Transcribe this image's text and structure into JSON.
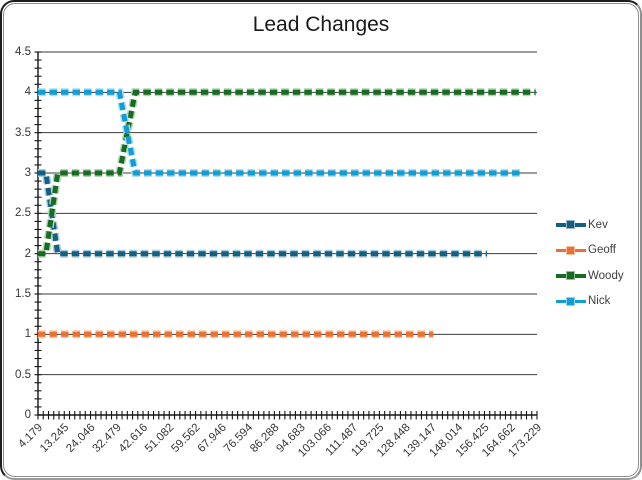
{
  "chart_data": {
    "type": "line",
    "title": "Lead Changes",
    "xlabel": "",
    "ylabel": "",
    "ylim": [
      0,
      4.5
    ],
    "y_tick_step": 0.5,
    "y_tick_labels": [
      "0",
      "0.5",
      "1",
      "1.5",
      "2",
      "2.5",
      "3",
      "3.5",
      "4",
      "4.5"
    ],
    "x_labels": [
      "4.179",
      "13.245",
      "24.046",
      "32.479",
      "42.616",
      "51.082",
      "59.562",
      "67.946",
      "76.594",
      "86.288",
      "94.683",
      "103.066",
      "111.487",
      "119.725",
      "128.448",
      "139.147",
      "148.014",
      "156.425",
      "164.662",
      "173.229"
    ],
    "grid": "horizontal",
    "gridline_color": "#3b3b3b",
    "axis_color": "#161616",
    "tick_label_color": "#363636",
    "legend_position": "right",
    "line_style": "dashed",
    "series": [
      {
        "name": "Kev",
        "color": "#156082",
        "halo_color": "#a8ccdc",
        "values": [
          3,
          2,
          2,
          2,
          2,
          2,
          2,
          2,
          2,
          2,
          2,
          2,
          2,
          2,
          2,
          2,
          2,
          2,
          null,
          null
        ],
        "vertices": [
          [
            0,
            3
          ],
          [
            0.3,
            3
          ],
          [
            0.75,
            2
          ],
          [
            17.1,
            2
          ]
        ]
      },
      {
        "name": "Geoff",
        "color": "#E97132",
        "halo_color": "#f6c9a8",
        "values": [
          1,
          1,
          1,
          1,
          1,
          1,
          1,
          1,
          1,
          1,
          1,
          1,
          1,
          1,
          1,
          1,
          null,
          null,
          null,
          null
        ],
        "vertices": [
          [
            0,
            1
          ],
          [
            15.05,
            1
          ]
        ]
      },
      {
        "name": "Woody",
        "color": "#196B24",
        "halo_color": "#aed5b0",
        "values": [
          2,
          3,
          3,
          3,
          4,
          4,
          4,
          4,
          4,
          4,
          4,
          4,
          4,
          4,
          4,
          4,
          4,
          4,
          4,
          4
        ],
        "vertices": [
          [
            0,
            2
          ],
          [
            0.3,
            2
          ],
          [
            0.75,
            3
          ],
          [
            3.1,
            3
          ],
          [
            3.7,
            4
          ],
          [
            18.95,
            4
          ]
        ]
      },
      {
        "name": "Nick",
        "color": "#0F9ED5",
        "halo_color": "#abddf4",
        "values": [
          4,
          4,
          4,
          4,
          3,
          3,
          3,
          3,
          3,
          3,
          3,
          3,
          3,
          3,
          3,
          3,
          3,
          3,
          3,
          null
        ],
        "vertices": [
          [
            0,
            4
          ],
          [
            3.1,
            4
          ],
          [
            3.7,
            3
          ],
          [
            18.45,
            3
          ]
        ]
      }
    ]
  }
}
